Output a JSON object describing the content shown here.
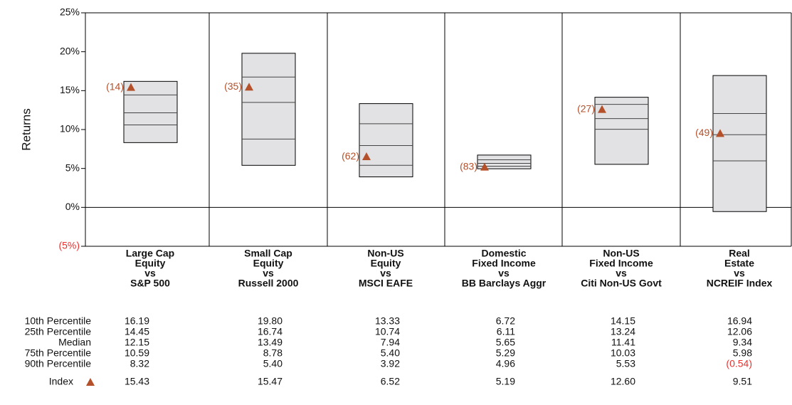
{
  "chart_data": {
    "type": "percentile_box",
    "ylabel": "Returns",
    "ylim": [
      -5,
      25
    ],
    "yticks": [
      {
        "value": -5,
        "label": "(5%)"
      },
      {
        "value": 0,
        "label": "0%"
      },
      {
        "value": 5,
        "label": "5%"
      },
      {
        "value": 10,
        "label": "10%"
      },
      {
        "value": 15,
        "label": "15%"
      },
      {
        "value": 20,
        "label": "20%"
      },
      {
        "value": 25,
        "label": "25%"
      }
    ],
    "negative_color": "#e8322e",
    "box_color": "#e2e2e4",
    "categories": [
      [
        "Large Cap",
        "Equity",
        "vs",
        "S&P 500"
      ],
      [
        "Small Cap",
        "Equity",
        "vs",
        "Russell 2000"
      ],
      [
        "Non-US",
        "Equity",
        "vs",
        "MSCI EAFE"
      ],
      [
        "Domestic",
        "Fixed Income",
        "vs",
        "BB Barclays Aggr"
      ],
      [
        "Non-US",
        "Fixed Income",
        "vs",
        "Citi Non-US Govt"
      ],
      [
        "Real",
        "Estate",
        "vs",
        "NCREIF Index"
      ]
    ],
    "series": [
      {
        "name": "10th Percentile",
        "values": [
          16.19,
          19.8,
          13.33,
          6.72,
          14.15,
          16.94
        ],
        "value_labels": [
          "16.19",
          "19.80",
          "13.33",
          "6.72",
          "14.15",
          "16.94"
        ]
      },
      {
        "name": "25th Percentile",
        "values": [
          14.45,
          16.74,
          10.74,
          6.11,
          13.24,
          12.06
        ],
        "value_labels": [
          "14.45",
          "16.74",
          "10.74",
          "6.11",
          "13.24",
          "12.06"
        ]
      },
      {
        "name": "Median",
        "values": [
          12.15,
          13.49,
          7.94,
          5.65,
          11.41,
          9.34
        ],
        "value_labels": [
          "12.15",
          "13.49",
          "7.94",
          "5.65",
          "11.41",
          "9.34"
        ]
      },
      {
        "name": "75th Percentile",
        "values": [
          10.59,
          8.78,
          5.4,
          5.29,
          10.03,
          5.98
        ],
        "value_labels": [
          "10.59",
          "8.78",
          "5.40",
          "5.29",
          "10.03",
          "5.98"
        ]
      },
      {
        "name": "90th Percentile",
        "values": [
          8.32,
          5.4,
          3.92,
          4.96,
          5.53,
          -0.54
        ],
        "value_labels": [
          "8.32",
          "5.40",
          "3.92",
          "4.96",
          "5.53",
          "(0.54)"
        ]
      }
    ],
    "index": {
      "name": "Index",
      "color": "#b4502a",
      "values": [
        15.43,
        15.47,
        6.52,
        5.19,
        12.6,
        9.51
      ],
      "value_labels": [
        "15.43",
        "15.47",
        "6.52",
        "5.19",
        "12.60",
        "9.51"
      ],
      "rank_labels": [
        "(14)",
        "(35)",
        "(62)",
        "(83)",
        "(27)",
        "(49)"
      ]
    }
  }
}
